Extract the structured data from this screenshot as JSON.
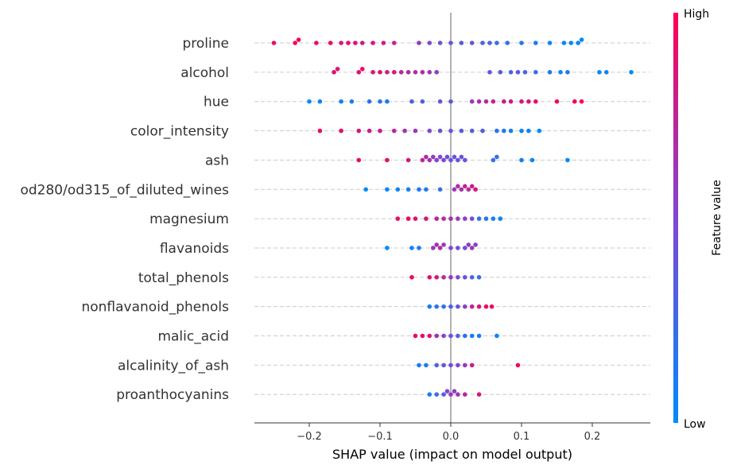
{
  "chart_data": {
    "type": "scatter",
    "subtype": "shap-beeswarm",
    "xlabel": "SHAP value (impact on model output)",
    "x_ticks": [
      "−0.2",
      "−0.1",
      "0.0",
      "0.1",
      "0.2"
    ],
    "x_tick_values": [
      -0.2,
      -0.1,
      0.0,
      0.1,
      0.2
    ],
    "xlim": [
      -0.275,
      0.28
    ],
    "colorbar": {
      "label": "Feature value",
      "high_label": "High",
      "low_label": "Low",
      "high_color": "#ff0052",
      "low_color": "#008bfb"
    },
    "features": [
      {
        "name": "proline",
        "points": [
          [
            -0.25,
            0.9
          ],
          [
            -0.22,
            1
          ],
          [
            -0.215,
            0.95
          ],
          [
            -0.19,
            0.9
          ],
          [
            -0.17,
            0.95
          ],
          [
            -0.155,
            0.85
          ],
          [
            -0.145,
            0.9
          ],
          [
            -0.135,
            0.85
          ],
          [
            -0.125,
            0.8
          ],
          [
            -0.11,
            0.85
          ],
          [
            -0.095,
            0.8
          ],
          [
            -0.08,
            0.75
          ],
          [
            -0.045,
            0.6
          ],
          [
            -0.03,
            0.5
          ],
          [
            -0.015,
            0.45
          ],
          [
            0,
            0.4
          ],
          [
            0.015,
            0.35
          ],
          [
            0.03,
            0.4
          ],
          [
            0.045,
            0.3
          ],
          [
            0.055,
            0.3
          ],
          [
            0.065,
            0.25
          ],
          [
            0.08,
            0.2
          ],
          [
            0.1,
            0.15
          ],
          [
            0.12,
            0.1
          ],
          [
            0.14,
            0.05
          ],
          [
            0.16,
            0.05
          ],
          [
            0.17,
            0
          ],
          [
            0.18,
            0.05
          ],
          [
            0.185,
            0
          ]
        ]
      },
      {
        "name": "alcohol",
        "points": [
          [
            -0.165,
            0.9
          ],
          [
            -0.16,
            0.85
          ],
          [
            -0.13,
            0.9
          ],
          [
            -0.125,
            0.95
          ],
          [
            -0.11,
            0.85
          ],
          [
            -0.1,
            0.9
          ],
          [
            -0.09,
            0.8
          ],
          [
            -0.08,
            0.85
          ],
          [
            -0.07,
            0.75
          ],
          [
            -0.06,
            0.7
          ],
          [
            -0.05,
            0.65
          ],
          [
            -0.04,
            0.7
          ],
          [
            -0.03,
            0.6
          ],
          [
            -0.02,
            0.55
          ],
          [
            0.055,
            0.4
          ],
          [
            0.07,
            0.35
          ],
          [
            0.085,
            0.3
          ],
          [
            0.095,
            0.35
          ],
          [
            0.105,
            0.3
          ],
          [
            0.12,
            0.2
          ],
          [
            0.14,
            0.1
          ],
          [
            0.155,
            0.05
          ],
          [
            0.165,
            0.1
          ],
          [
            0.21,
            0
          ],
          [
            0.22,
            0.05
          ],
          [
            0.255,
            0
          ]
        ]
      },
      {
        "name": "hue",
        "points": [
          [
            -0.2,
            0
          ],
          [
            -0.185,
            0.05
          ],
          [
            -0.155,
            0.1
          ],
          [
            -0.14,
            0.1
          ],
          [
            -0.115,
            0.2
          ],
          [
            -0.1,
            0.15
          ],
          [
            -0.09,
            0.1
          ],
          [
            -0.055,
            0.3
          ],
          [
            -0.04,
            0.3
          ],
          [
            -0.015,
            0.4
          ],
          [
            0,
            0.35
          ],
          [
            0.03,
            0.6
          ],
          [
            0.04,
            0.65
          ],
          [
            0.05,
            0.7
          ],
          [
            0.06,
            0.75
          ],
          [
            0.075,
            0.8
          ],
          [
            0.085,
            0.8
          ],
          [
            0.1,
            0.85
          ],
          [
            0.11,
            0.85
          ],
          [
            0.12,
            0.9
          ],
          [
            0.15,
            0.95
          ],
          [
            0.175,
            0.95
          ],
          [
            0.185,
            1
          ]
        ]
      },
      {
        "name": "color_intensity",
        "points": [
          [
            -0.185,
            0.95
          ],
          [
            -0.155,
            0.9
          ],
          [
            -0.13,
            0.85
          ],
          [
            -0.115,
            0.8
          ],
          [
            -0.1,
            0.8
          ],
          [
            -0.08,
            0.75
          ],
          [
            -0.065,
            0.65
          ],
          [
            -0.05,
            0.6
          ],
          [
            -0.03,
            0.5
          ],
          [
            -0.015,
            0.45
          ],
          [
            0,
            0.4
          ],
          [
            0.015,
            0.35
          ],
          [
            0.03,
            0.3
          ],
          [
            0.045,
            0.35
          ],
          [
            0.065,
            0.15
          ],
          [
            0.075,
            0.15
          ],
          [
            0.085,
            0.1
          ],
          [
            0.1,
            0.05
          ],
          [
            0.11,
            0.05
          ],
          [
            0.125,
            0
          ]
        ]
      },
      {
        "name": "ash",
        "points": [
          [
            -0.13,
            0.95
          ],
          [
            -0.09,
            0.9
          ],
          [
            -0.06,
            0.85
          ],
          [
            -0.04,
            0.75
          ],
          [
            -0.035,
            0.7
          ],
          [
            -0.03,
            0.65
          ],
          [
            -0.025,
            0.6
          ],
          [
            -0.02,
            0.55
          ],
          [
            -0.015,
            0.5
          ],
          [
            -0.01,
            0.5
          ],
          [
            -0.005,
            0.45
          ],
          [
            0,
            0.45
          ],
          [
            0.005,
            0.4
          ],
          [
            0.01,
            0.45
          ],
          [
            0.015,
            0.4
          ],
          [
            0.02,
            0.35
          ],
          [
            0.06,
            0.2
          ],
          [
            0.065,
            0.2
          ],
          [
            0.1,
            0.1
          ],
          [
            0.115,
            0.05
          ],
          [
            0.165,
            0
          ]
        ]
      },
      {
        "name": "od280/od315_of_diluted_wines",
        "points": [
          [
            -0.12,
            0
          ],
          [
            -0.09,
            0.05
          ],
          [
            -0.075,
            0.05
          ],
          [
            -0.06,
            0.1
          ],
          [
            -0.045,
            0.1
          ],
          [
            -0.035,
            0.15
          ],
          [
            -0.015,
            0.2
          ],
          [
            0.005,
            0.6
          ],
          [
            0.01,
            0.7
          ],
          [
            0.015,
            0.65
          ],
          [
            0.02,
            0.75
          ],
          [
            0.025,
            0.7
          ],
          [
            0.03,
            0.8
          ],
          [
            0.035,
            0.85
          ]
        ]
      },
      {
        "name": "magnesium",
        "points": [
          [
            -0.075,
            0.9
          ],
          [
            -0.06,
            0.95
          ],
          [
            -0.05,
            0.9
          ],
          [
            -0.035,
            0.85
          ],
          [
            -0.02,
            0.75
          ],
          [
            -0.01,
            0.7
          ],
          [
            0,
            0.65
          ],
          [
            0.01,
            0.6
          ],
          [
            0.02,
            0.55
          ],
          [
            0.03,
            0.5
          ],
          [
            0.04,
            0.2
          ],
          [
            0.05,
            0.15
          ],
          [
            0.06,
            0.1
          ],
          [
            0.07,
            0.05
          ]
        ]
      },
      {
        "name": "flavanoids",
        "points": [
          [
            -0.09,
            0
          ],
          [
            -0.055,
            0.05
          ],
          [
            -0.045,
            0.1
          ],
          [
            -0.025,
            0.6
          ],
          [
            -0.02,
            0.65
          ],
          [
            -0.015,
            0.7
          ],
          [
            -0.01,
            0.6
          ],
          [
            0,
            0.5
          ],
          [
            0.01,
            0.45
          ],
          [
            0.02,
            0.5
          ],
          [
            0.025,
            0.55
          ],
          [
            0.03,
            0.6
          ],
          [
            0.035,
            0.55
          ]
        ]
      },
      {
        "name": "total_phenols",
        "points": [
          [
            -0.055,
            0.95
          ],
          [
            -0.03,
            0.9
          ],
          [
            -0.02,
            0.85
          ],
          [
            -0.01,
            0.7
          ],
          [
            0,
            0.6
          ],
          [
            0.01,
            0.5
          ],
          [
            0.02,
            0.4
          ],
          [
            0.03,
            0.3
          ],
          [
            0.04,
            0.2
          ]
        ]
      },
      {
        "name": "nonflavanoid_phenols",
        "points": [
          [
            -0.03,
            0.1
          ],
          [
            -0.02,
            0.15
          ],
          [
            -0.01,
            0.2
          ],
          [
            0,
            0.3
          ],
          [
            0.01,
            0.45
          ],
          [
            0.02,
            0.55
          ],
          [
            0.03,
            0.75
          ],
          [
            0.04,
            0.85
          ],
          [
            0.05,
            0.9
          ],
          [
            0.058,
            0.95
          ]
        ]
      },
      {
        "name": "malic_acid",
        "points": [
          [
            -0.05,
            0.95
          ],
          [
            -0.04,
            0.9
          ],
          [
            -0.03,
            0.85
          ],
          [
            -0.02,
            0.7
          ],
          [
            -0.01,
            0.5
          ],
          [
            0,
            0.45
          ],
          [
            0.01,
            0.3
          ],
          [
            0.02,
            0.2
          ],
          [
            0.03,
            0.1
          ],
          [
            0.04,
            0.1
          ],
          [
            0.065,
            0.05
          ]
        ]
      },
      {
        "name": "alcalinity_of_ash",
        "points": [
          [
            -0.045,
            0.1
          ],
          [
            -0.035,
            0.15
          ],
          [
            -0.02,
            0.3
          ],
          [
            -0.01,
            0.4
          ],
          [
            0,
            0.45
          ],
          [
            0.01,
            0.5
          ],
          [
            0.02,
            0.6
          ],
          [
            0.03,
            0.8
          ],
          [
            0.095,
            0.95
          ]
        ]
      },
      {
        "name": "proanthocyanins",
        "points": [
          [
            -0.03,
            0.1
          ],
          [
            -0.02,
            0.2
          ],
          [
            -0.01,
            0.35
          ],
          [
            -0.005,
            0.5
          ],
          [
            0,
            0.6
          ],
          [
            0.005,
            0.55
          ],
          [
            0.01,
            0.65
          ],
          [
            0.02,
            0.7
          ],
          [
            0.04,
            0.85
          ]
        ]
      }
    ]
  }
}
